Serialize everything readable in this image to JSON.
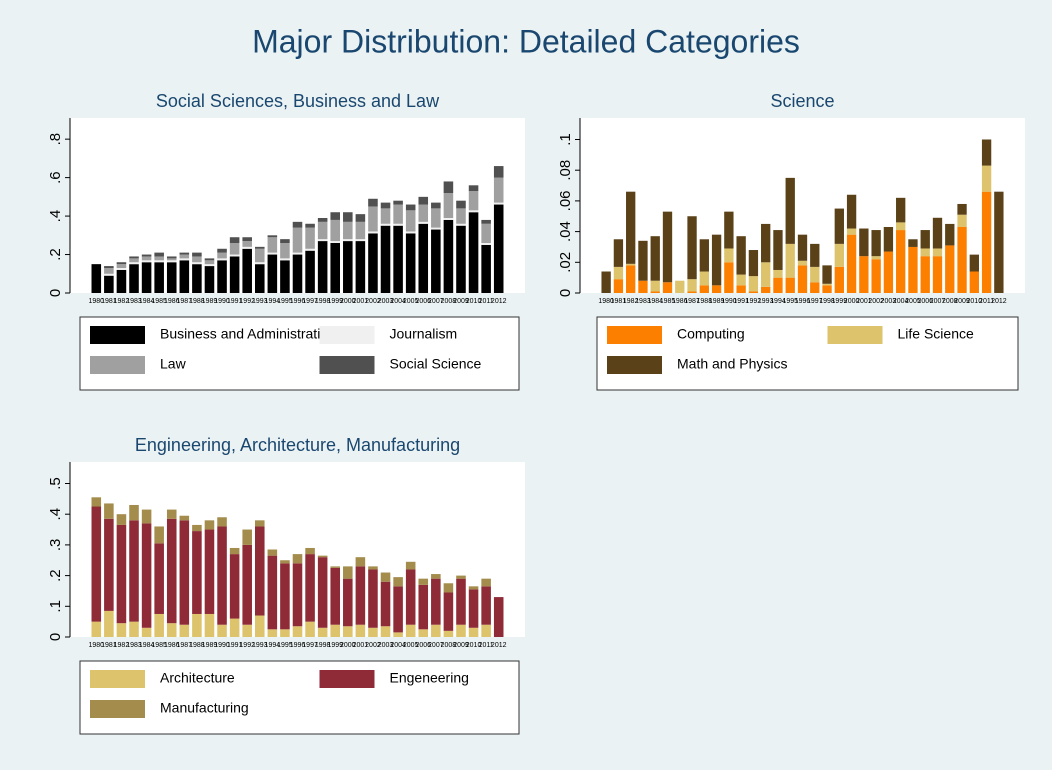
{
  "title": "Major Distribution: Detailed Categories",
  "chart_data": [
    {
      "type": "stacked_bar",
      "title": "Social Sciences, Business and Law",
      "categories": [
        "1980",
        "1981",
        "1982",
        "1983",
        "1984",
        "1985",
        "1986",
        "1987",
        "1988",
        "1989",
        "1990",
        "1991",
        "1992",
        "1993",
        "1994",
        "1995",
        "1996",
        "1997",
        "1998",
        "1999",
        "2000",
        "2001",
        "2002",
        "2003",
        "2004",
        "2005",
        "2006",
        "2007",
        "2008",
        "2009",
        "2010",
        "2011",
        "2012"
      ],
      "ylim": [
        0,
        0.91
      ],
      "yticks": [
        0,
        {
          "value": 0.2,
          "label": ".2"
        },
        {
          "value": 0.4,
          "label": ".4"
        },
        {
          "value": 0.6,
          "label": ".6"
        },
        {
          "value": 0.8,
          "label": ".8"
        }
      ],
      "series": [
        {
          "name": "Business and Administration",
          "color": "#000000",
          "values": [
            0.15,
            0.09,
            0.12,
            0.15,
            0.16,
            0.16,
            0.16,
            0.17,
            0.15,
            0.14,
            0.17,
            0.19,
            0.23,
            0.15,
            0.2,
            0.17,
            0.2,
            0.22,
            0.27,
            0.26,
            0.27,
            0.27,
            0.31,
            0.35,
            0.35,
            0.31,
            0.36,
            0.33,
            0.38,
            0.35,
            0.42,
            0.25,
            0.46
          ]
        },
        {
          "name": "Journalism",
          "color": "#f0f0f0",
          "values": [
            0,
            0.01,
            0.01,
            0.01,
            0.01,
            0.01,
            0.01,
            0.01,
            0.01,
            0.01,
            0.01,
            0.01,
            0.01,
            0.01,
            0.01,
            0.01,
            0.01,
            0.01,
            0.01,
            0.01,
            0.01,
            0.01,
            0.01,
            0.01,
            0.01,
            0.01,
            0.01,
            0.01,
            0.01,
            0.01,
            0.01,
            0.01,
            0.01
          ]
        },
        {
          "name": "Law",
          "color": "#a0a0a0",
          "values": [
            0,
            0.03,
            0.02,
            0.02,
            0.02,
            0.02,
            0.01,
            0.02,
            0.03,
            0.02,
            0.03,
            0.06,
            0.03,
            0.07,
            0.08,
            0.08,
            0.13,
            0.11,
            0.09,
            0.11,
            0.09,
            0.09,
            0.13,
            0.08,
            0.1,
            0.11,
            0.09,
            0.1,
            0.13,
            0.08,
            0.1,
            0.1,
            0.13
          ]
        },
        {
          "name": "Social Science",
          "color": "#505050",
          "values": [
            0,
            0.01,
            0.01,
            0.01,
            0.01,
            0.02,
            0.01,
            0.01,
            0.02,
            0.01,
            0.02,
            0.03,
            0.02,
            0.01,
            0.01,
            0.02,
            0.03,
            0.02,
            0.02,
            0.04,
            0.05,
            0.04,
            0.04,
            0.03,
            0.02,
            0.03,
            0.04,
            0.03,
            0.06,
            0.04,
            0.03,
            0.02,
            0.06
          ]
        }
      ]
    },
    {
      "type": "stacked_bar",
      "title": "Science",
      "categories": [
        "1980",
        "1981",
        "1982",
        "1983",
        "1984",
        "1985",
        "1986",
        "1987",
        "1988",
        "1989",
        "1990",
        "1991",
        "1992",
        "1993",
        "1994",
        "1995",
        "1996",
        "1997",
        "1998",
        "1999",
        "2000",
        "2001",
        "2002",
        "2003",
        "2004",
        "2005",
        "2006",
        "2007",
        "2008",
        "2009",
        "2010",
        "2011",
        "2012"
      ],
      "ylim": [
        0,
        0.114
      ],
      "yticks": [
        0,
        {
          "value": 0.02,
          "label": ".02"
        },
        {
          "value": 0.04,
          "label": ".04"
        },
        {
          "value": 0.06,
          "label": ".06"
        },
        {
          "value": 0.08,
          "label": ".08"
        },
        {
          "value": 0.1,
          "label": ".1"
        }
      ],
      "series": [
        {
          "name": "Computing",
          "color": "#fc7f00",
          "values": [
            0,
            0.009,
            0.018,
            0.008,
            0.001,
            0.007,
            0,
            0.001,
            0.005,
            0.005,
            0.02,
            0.005,
            0.001,
            0.004,
            0.01,
            0.01,
            0.018,
            0.007,
            0.005,
            0.017,
            0.038,
            0.024,
            0.022,
            0.027,
            0.041,
            0.03,
            0.024,
            0.024,
            0.031,
            0.043,
            0.014,
            0.066,
            0
          ]
        },
        {
          "name": "Life Science",
          "color": "#dcc36c",
          "values": [
            0,
            0.008,
            0.001,
            0,
            0.007,
            0,
            0.008,
            0.008,
            0.009,
            0,
            0.009,
            0.007,
            0.01,
            0.016,
            0.005,
            0.022,
            0.003,
            0.01,
            0.001,
            0.015,
            0.004,
            0,
            0.002,
            0,
            0.005,
            0,
            0.005,
            0.005,
            0,
            0.008,
            0,
            0.017,
            0
          ]
        },
        {
          "name": "Math and Physics",
          "color": "#5a4118",
          "values": [
            0.014,
            0.018,
            0.047,
            0.026,
            0.029,
            0.046,
            0,
            0.041,
            0.021,
            0.033,
            0.024,
            0.025,
            0.017,
            0.025,
            0.026,
            0.043,
            0.017,
            0.015,
            0.012,
            0.023,
            0.022,
            0.018,
            0.017,
            0.016,
            0.016,
            0.005,
            0.012,
            0.02,
            0.014,
            0.007,
            0.011,
            0.017,
            0.066
          ]
        }
      ]
    },
    {
      "type": "stacked_bar",
      "title": "Engineering, Architecture, Manufacturing",
      "categories": [
        "1980",
        "1981",
        "1982",
        "1983",
        "1984",
        "1985",
        "1986",
        "1987",
        "1988",
        "1989",
        "1990",
        "1991",
        "1992",
        "1993",
        "1994",
        "1995",
        "1996",
        "1997",
        "1998",
        "1999",
        "2000",
        "2001",
        "2002",
        "2003",
        "2004",
        "2005",
        "2006",
        "2007",
        "2008",
        "2009",
        "2010",
        "2011",
        "2012"
      ],
      "ylim": [
        0,
        0.57
      ],
      "yticks": [
        0,
        {
          "value": 0.1,
          "label": ".1"
        },
        {
          "value": 0.2,
          "label": ".2"
        },
        {
          "value": 0.3,
          "label": ".3"
        },
        {
          "value": 0.4,
          "label": ".4"
        },
        {
          "value": 0.5,
          "label": ".5"
        }
      ],
      "series": [
        {
          "name": "Architecture",
          "color": "#dcc36c",
          "values": [
            0.05,
            0.085,
            0.045,
            0.05,
            0.03,
            0.075,
            0.045,
            0.04,
            0.075,
            0.075,
            0.04,
            0.06,
            0.04,
            0.07,
            0.025,
            0.025,
            0.035,
            0.05,
            0.03,
            0.04,
            0.035,
            0.04,
            0.03,
            0.035,
            0.015,
            0.04,
            0.025,
            0.04,
            0.02,
            0.04,
            0.03,
            0.04,
            0
          ]
        },
        {
          "name": "Engeneering",
          "color": "#8f2b37",
          "values": [
            0.375,
            0.3,
            0.32,
            0.33,
            0.34,
            0.23,
            0.34,
            0.34,
            0.27,
            0.275,
            0.32,
            0.21,
            0.26,
            0.29,
            0.24,
            0.215,
            0.205,
            0.22,
            0.23,
            0.185,
            0.155,
            0.19,
            0.19,
            0.145,
            0.15,
            0.18,
            0.145,
            0.15,
            0.125,
            0.15,
            0.125,
            0.125,
            0.13
          ]
        },
        {
          "name": "Manufacturing",
          "color": "#a38c4c",
          "values": [
            0.03,
            0.05,
            0.035,
            0.05,
            0.045,
            0.055,
            0.03,
            0.015,
            0.02,
            0.03,
            0.03,
            0.02,
            0.05,
            0.02,
            0.02,
            0.01,
            0.03,
            0.02,
            0.005,
            0.005,
            0.04,
            0.03,
            0.01,
            0.03,
            0.03,
            0.025,
            0.02,
            0.015,
            0.03,
            0.01,
            0.01,
            0.025,
            0
          ]
        }
      ]
    }
  ]
}
